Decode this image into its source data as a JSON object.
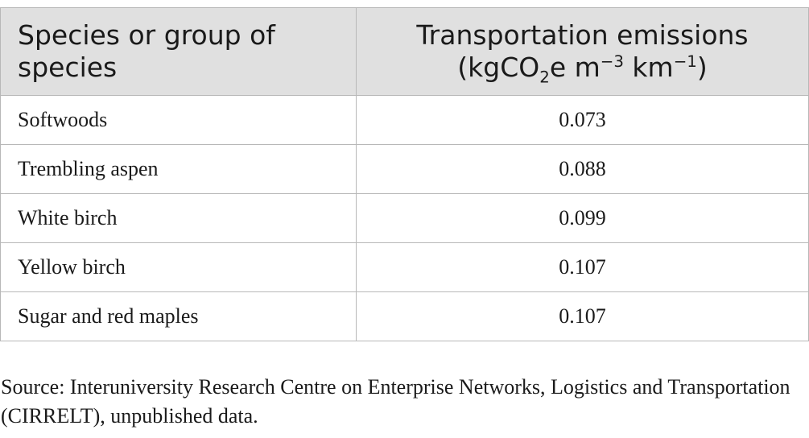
{
  "table": {
    "header": {
      "col1_line1": "Species or group of",
      "col1_line2": "species",
      "col2_line1": "Transportation emissions",
      "col2_line2_prefix": "(kgCO",
      "col2_line2_sub": "2",
      "col2_line2_mid": "e m",
      "col2_line2_sup1": "−3",
      "col2_line2_mid2": " km",
      "col2_line2_sup2": "−1",
      "col2_line2_suffix": ")"
    },
    "rows": [
      {
        "species": "Softwoods",
        "emissions": "0.073"
      },
      {
        "species": "Trembling aspen",
        "emissions": "0.088"
      },
      {
        "species": "White birch",
        "emissions": "0.099"
      },
      {
        "species": "Yellow birch",
        "emissions": "0.107"
      },
      {
        "species": "Sugar and red maples",
        "emissions": "0.107"
      }
    ]
  },
  "source_note": "Source: Interuniversity Research Centre on Enterprise Networks, Logistics and Transportation (CIRRELT), unpublished data."
}
